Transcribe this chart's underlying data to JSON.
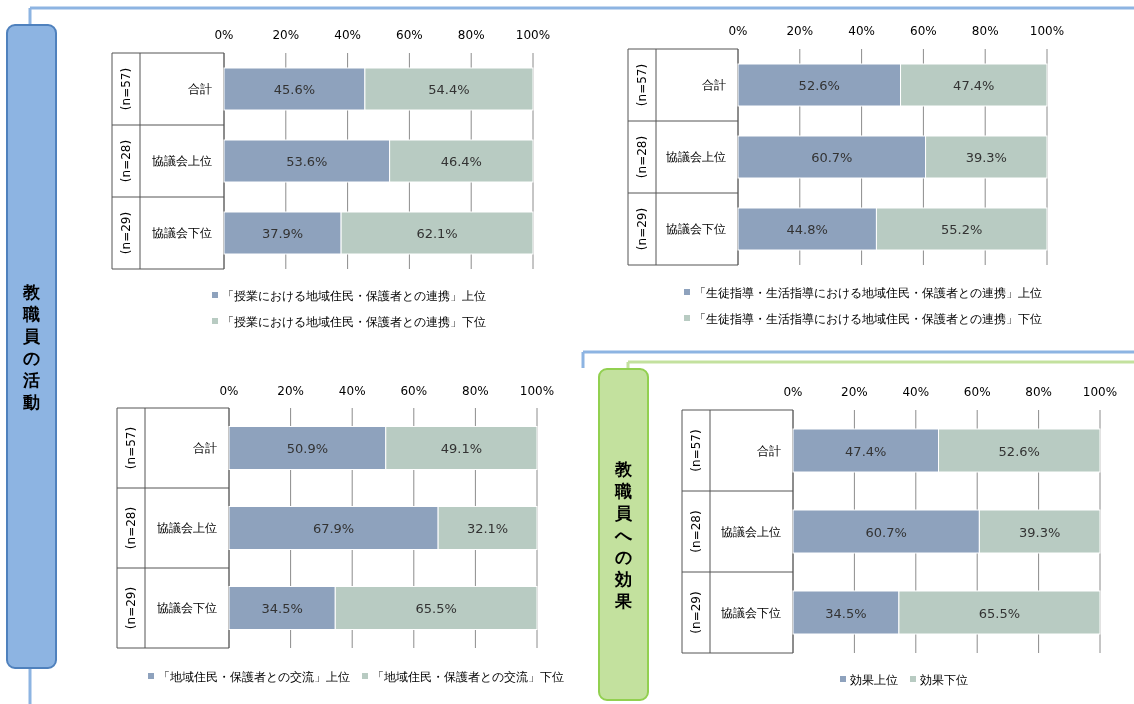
{
  "chart_data": [
    {
      "type": "bar",
      "orientation": "horizontal",
      "stacked": true,
      "categories": [
        "合計",
        "協議会上位",
        "協議会下位"
      ],
      "y2_categories": [
        "(n=57)",
        "(n=28)",
        "(n=29)"
      ],
      "xlim": [
        0,
        100
      ],
      "xticks": [
        {
          "value": 0,
          "label": "0%"
        },
        {
          "value": 20,
          "label": "20%"
        },
        {
          "value": 40,
          "label": "40%"
        },
        {
          "value": 60,
          "label": "60%"
        },
        {
          "value": 80,
          "label": "80%"
        },
        {
          "value": 100,
          "label": "100%"
        }
      ],
      "grid": "x",
      "legend": "bottom",
      "annotations": [
        "教職員の活動"
      ],
      "series": [
        {
          "name": "「授業における地域住民・保護者との連携」上位",
          "color": "#8ea2bd",
          "values": [
            45.6,
            53.6,
            37.9
          ],
          "value_labels": [
            "45.6%",
            "53.6%",
            "37.9%"
          ]
        },
        {
          "name": "「授業における地域住民・保護者との連携」下位",
          "color": "#b8cbc2",
          "values": [
            54.4,
            46.4,
            62.1
          ],
          "value_labels": [
            "54.4%",
            "46.4%",
            "62.1%"
          ]
        }
      ]
    },
    {
      "type": "bar",
      "orientation": "horizontal",
      "stacked": true,
      "categories": [
        "合計",
        "協議会上位",
        "協議会下位"
      ],
      "y2_categories": [
        "(n=57)",
        "(n=28)",
        "(n=29)"
      ],
      "xlim": [
        0,
        100
      ],
      "xticks": [
        {
          "value": 0,
          "label": "0%"
        },
        {
          "value": 20,
          "label": "20%"
        },
        {
          "value": 40,
          "label": "40%"
        },
        {
          "value": 60,
          "label": "60%"
        },
        {
          "value": 80,
          "label": "80%"
        },
        {
          "value": 100,
          "label": "100%"
        }
      ],
      "grid": "x",
      "legend": "bottom",
      "series": [
        {
          "name": "「生徒指導・生活指導における地域住民・保護者との連携」上位",
          "color": "#8ea2bd",
          "values": [
            52.6,
            60.7,
            44.8
          ],
          "value_labels": [
            "52.6%",
            "60.7%",
            "44.8%"
          ]
        },
        {
          "name": "「生徒指導・生活指導における地域住民・保護者との連携」下位",
          "color": "#b8cbc2",
          "values": [
            47.4,
            39.3,
            55.2
          ],
          "value_labels": [
            "47.4%",
            "39.3%",
            "55.2%"
          ]
        }
      ]
    },
    {
      "type": "bar",
      "orientation": "horizontal",
      "stacked": true,
      "categories": [
        "合計",
        "協議会上位",
        "協議会下位"
      ],
      "y2_categories": [
        "(n=57)",
        "(n=28)",
        "(n=29)"
      ],
      "xlim": [
        0,
        100
      ],
      "xticks": [
        {
          "value": 0,
          "label": "0%"
        },
        {
          "value": 20,
          "label": "20%"
        },
        {
          "value": 40,
          "label": "40%"
        },
        {
          "value": 60,
          "label": "60%"
        },
        {
          "value": 80,
          "label": "80%"
        },
        {
          "value": 100,
          "label": "100%"
        }
      ],
      "grid": "x",
      "legend": "bottom",
      "series": [
        {
          "name": "「地域住民・保護者との交流」上位",
          "color": "#8ea2bd",
          "values": [
            50.9,
            67.9,
            34.5
          ],
          "value_labels": [
            "50.9%",
            "67.9%",
            "34.5%"
          ]
        },
        {
          "name": "「地域住民・保護者との交流」下位",
          "color": "#b8cbc2",
          "values": [
            49.1,
            32.1,
            65.5
          ],
          "value_labels": [
            "49.1%",
            "32.1%",
            "65.5%"
          ]
        }
      ]
    },
    {
      "type": "bar",
      "orientation": "horizontal",
      "stacked": true,
      "categories": [
        "合計",
        "協議会上位",
        "協議会下位"
      ],
      "y2_categories": [
        "(n=57)",
        "(n=28)",
        "(n=29)"
      ],
      "xlim": [
        0,
        100
      ],
      "xticks": [
        {
          "value": 0,
          "label": "0%"
        },
        {
          "value": 20,
          "label": "20%"
        },
        {
          "value": 40,
          "label": "40%"
        },
        {
          "value": 60,
          "label": "60%"
        },
        {
          "value": 80,
          "label": "80%"
        },
        {
          "value": 100,
          "label": "100%"
        }
      ],
      "grid": "x",
      "legend": "bottom",
      "annotations": [
        "教職員への効果"
      ],
      "series": [
        {
          "name": "効果上位",
          "color": "#8ea2bd",
          "values": [
            47.4,
            60.7,
            34.5
          ],
          "value_labels": [
            "47.4%",
            "60.7%",
            "34.5%"
          ]
        },
        {
          "name": "効果下位",
          "color": "#b8cbc2",
          "values": [
            52.6,
            39.3,
            65.5
          ],
          "value_labels": [
            "52.6%",
            "39.3%",
            "65.5%"
          ]
        }
      ]
    }
  ]
}
